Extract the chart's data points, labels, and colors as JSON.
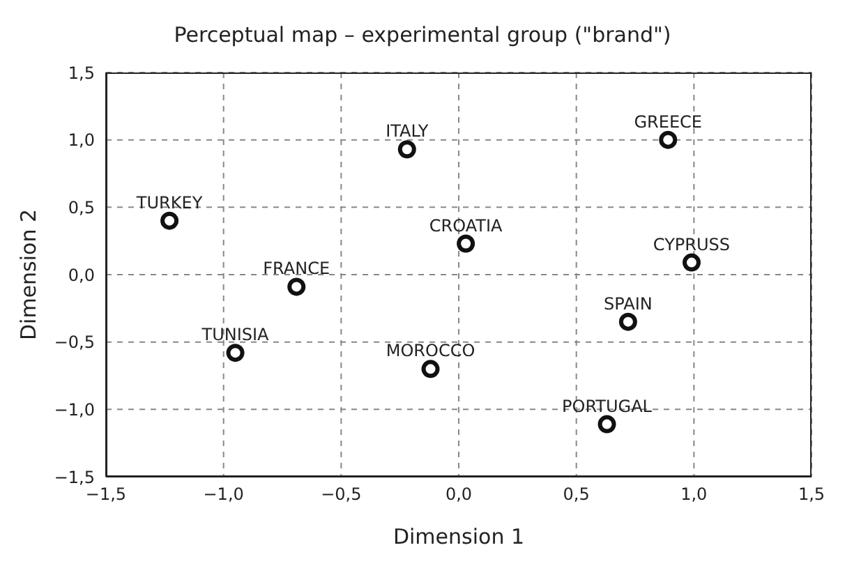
{
  "chart_data": {
    "type": "scatter",
    "title": "Perceptual map – experimental group (\"brand\")",
    "xlabel": "Dimension 1",
    "ylabel": "Dimension 2",
    "x": [
      -1.23,
      -0.22,
      0.89,
      0.03,
      0.99,
      -0.69,
      -0.95,
      -0.12,
      0.72,
      0.63
    ],
    "series": [
      {
        "color": "#111111",
        "values": [
          0.4,
          0.93,
          1.0,
          0.23,
          0.09,
          -0.09,
          -0.58,
          -0.7,
          -0.35,
          -1.11
        ]
      }
    ],
    "annotations": [
      {
        "text": "TURKEY",
        "x": -1.23,
        "y": 0.4
      },
      {
        "text": "ITALY",
        "x": -0.22,
        "y": 0.93
      },
      {
        "text": "GREECE",
        "x": 0.89,
        "y": 1.0
      },
      {
        "text": "CROATIA",
        "x": 0.03,
        "y": 0.23
      },
      {
        "text": "CYPRUSS",
        "x": 0.99,
        "y": 0.09
      },
      {
        "text": "FRANCE",
        "x": -0.69,
        "y": -0.09
      },
      {
        "text": "TUNISIA",
        "x": -0.95,
        "y": -0.58
      },
      {
        "text": "MOROCCO",
        "x": -0.12,
        "y": -0.7
      },
      {
        "text": "SPAIN",
        "x": 0.72,
        "y": -0.35
      },
      {
        "text": "PORTUGAL",
        "x": 0.63,
        "y": -1.11
      }
    ],
    "xlim": [
      -1.5,
      1.5
    ],
    "xticks": [
      {
        "value": -1.5,
        "label": "−1,5"
      },
      {
        "value": -1,
        "label": "−1,0"
      },
      {
        "value": -0.5,
        "label": "−0,5"
      },
      {
        "value": 0,
        "label": "0,0"
      },
      {
        "value": 0.5,
        "label": "0,5"
      },
      {
        "value": 1,
        "label": "1,0"
      },
      {
        "value": 1.5,
        "label": "1,5"
      }
    ],
    "ylim": [
      -1.5,
      1.5
    ],
    "yticks": [
      {
        "value": -1.5,
        "label": "−1,5"
      },
      {
        "value": -1,
        "label": "−1,0"
      },
      {
        "value": -0.5,
        "label": "−0,5"
      },
      {
        "value": 0,
        "label": "0,0"
      },
      {
        "value": 0.5,
        "label": "0,5"
      },
      {
        "value": 1,
        "label": "1,0"
      },
      {
        "value": 1.5,
        "label": "1,5"
      }
    ],
    "grid": true,
    "marker": "circle",
    "legend": false
  }
}
